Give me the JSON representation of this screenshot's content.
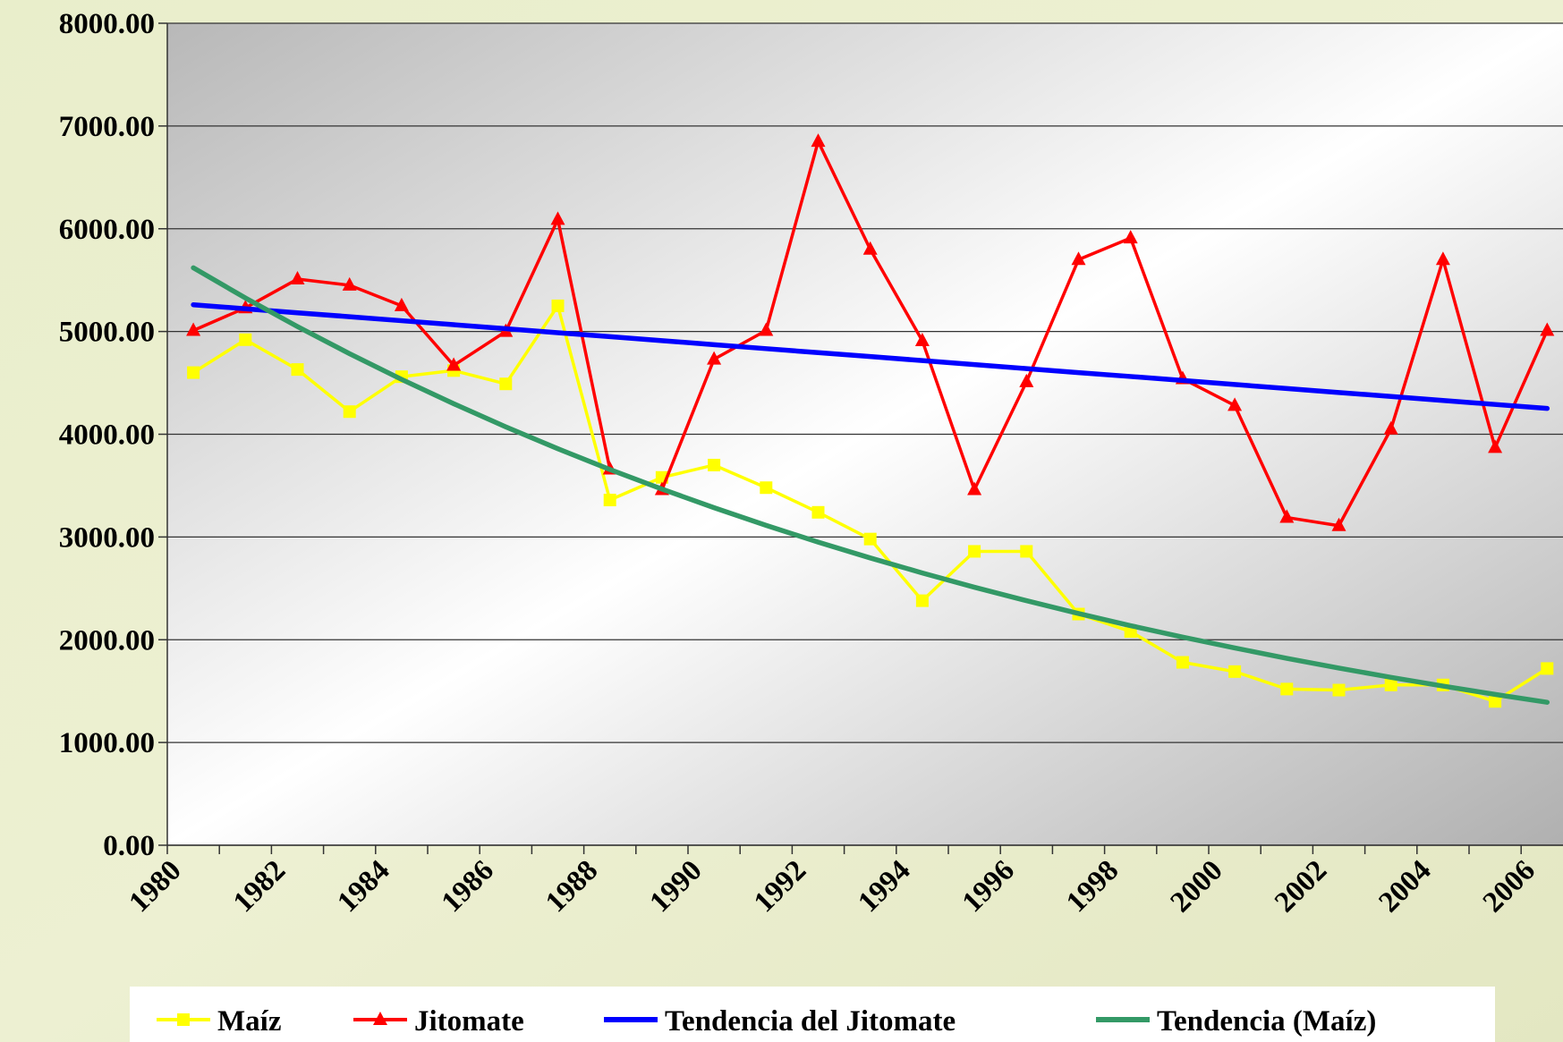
{
  "chart_data": {
    "type": "line",
    "categories": [
      "1980",
      null,
      "1982",
      null,
      "1984",
      null,
      "1986",
      null,
      "1988",
      null,
      "1990",
      null,
      "1992",
      null,
      "1994",
      null,
      "1996",
      null,
      "1998",
      null,
      "2000",
      null,
      "2002",
      null,
      "2004",
      null,
      "2006"
    ],
    "series": [
      {
        "name": "Maíz",
        "color": "#ffff00",
        "marker": "square",
        "values": [
          4600,
          4920,
          4630,
          4220,
          4560,
          4620,
          4490,
          5250,
          3360,
          3580,
          3700,
          3480,
          3240,
          2980,
          2380,
          2860,
          2860,
          2250,
          2080,
          1780,
          1690,
          1520,
          1510,
          1560,
          1560,
          1400,
          1720
        ]
      },
      {
        "name": "Jitomate",
        "color": "#ff0000",
        "marker": "triangle",
        "values": [
          5010,
          5230,
          5510,
          5450,
          5250,
          4670,
          5000,
          6090,
          3660,
          3460,
          4730,
          5010,
          6850,
          5800,
          4910,
          3460,
          4510,
          5700,
          5910,
          4540,
          4280,
          3190,
          3110,
          4050,
          5700,
          3870,
          5010
        ]
      },
      {
        "name": "Tendencia del Jitomate",
        "color": "#0000ff",
        "values": [
          5260,
          5221,
          5182,
          5144,
          5105,
          5066,
          5027,
          4988,
          4950,
          4911,
          4872,
          4833,
          4794,
          4756,
          4717,
          4678,
          4639,
          4600,
          4562,
          4523,
          4484,
          4445,
          4406,
          4368,
          4329,
          4290,
          4251
        ]
      },
      {
        "name": "Tendencia (Maíz)",
        "color": "#339966",
        "values": [
          5620,
          5326,
          5048,
          4784,
          4534,
          4297,
          4072,
          3859,
          3657,
          3466,
          3285,
          3113,
          2950,
          2796,
          2650,
          2511,
          2380,
          2255,
          2137,
          2026,
          1920,
          1819,
          1724,
          1634,
          1549,
          1468,
          1391
        ]
      }
    ],
    "ylim": [
      0,
      8000
    ],
    "yticks": [
      {
        "value": 0,
        "label": "0.00"
      },
      {
        "value": 1000,
        "label": "1000.00"
      },
      {
        "value": 2000,
        "label": "2000.00"
      },
      {
        "value": 3000,
        "label": "3000.00"
      },
      {
        "value": 4000,
        "label": "4000.00"
      },
      {
        "value": 5000,
        "label": "5000.00"
      },
      {
        "value": 6000,
        "label": "6000.00"
      },
      {
        "value": 7000,
        "label": "7000.00"
      },
      {
        "value": 8000,
        "label": "8000.00"
      }
    ],
    "grid": true,
    "legend": "bottom"
  }
}
